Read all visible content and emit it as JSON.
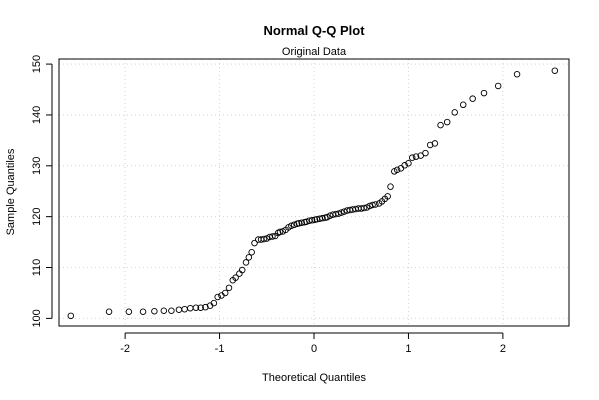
{
  "chart_data": {
    "type": "scatter",
    "title": "Normal Q-Q Plot",
    "subtitle": "Original Data",
    "xlabel": "Theoretical Quantiles",
    "ylabel": "Sample Quantiles",
    "xlim": [
      -2.7,
      2.7
    ],
    "ylim": [
      98.5,
      151
    ],
    "x_ticks": [
      "-2",
      "-1",
      "0",
      "1",
      "2"
    ],
    "y_ticks": [
      "100",
      "110",
      "120",
      "130",
      "140",
      "150"
    ],
    "grid": true,
    "marker": "open-circle",
    "series": [
      {
        "points": [
          [
            -2.575,
            100.5
          ],
          [
            -2.17,
            101.3
          ],
          [
            -1.96,
            101.3
          ],
          [
            -1.81,
            101.3
          ],
          [
            -1.69,
            101.4
          ],
          [
            -1.59,
            101.5
          ],
          [
            -1.51,
            101.5
          ],
          [
            -1.43,
            101.7
          ],
          [
            -1.37,
            101.8
          ],
          [
            -1.31,
            102.0
          ],
          [
            -1.25,
            102.1
          ],
          [
            -1.2,
            102.1
          ],
          [
            -1.15,
            102.2
          ],
          [
            -1.1,
            102.5
          ],
          [
            -1.06,
            103.0
          ],
          [
            -1.02,
            104.2
          ],
          [
            -0.98,
            104.5
          ],
          [
            -0.94,
            105.0
          ],
          [
            -0.9,
            106.0
          ],
          [
            -0.86,
            107.5
          ],
          [
            -0.83,
            108.0
          ],
          [
            -0.79,
            108.8
          ],
          [
            -0.76,
            109.5
          ],
          [
            -0.72,
            111.0
          ],
          [
            -0.69,
            112.0
          ],
          [
            -0.66,
            113.0
          ],
          [
            -0.63,
            114.8
          ],
          [
            -0.59,
            115.5
          ],
          [
            -0.56,
            115.5
          ],
          [
            -0.53,
            115.6
          ],
          [
            -0.5,
            115.7
          ],
          [
            -0.47,
            116.0
          ],
          [
            -0.44,
            116.1
          ],
          [
            -0.41,
            116.2
          ],
          [
            -0.38,
            116.8
          ],
          [
            -0.36,
            117.0
          ],
          [
            -0.33,
            117.1
          ],
          [
            -0.3,
            117.4
          ],
          [
            -0.27,
            117.9
          ],
          [
            -0.24,
            118.2
          ],
          [
            -0.21,
            118.4
          ],
          [
            -0.18,
            118.6
          ],
          [
            -0.16,
            118.7
          ],
          [
            -0.13,
            118.8
          ],
          [
            -0.1,
            118.9
          ],
          [
            -0.08,
            119.0
          ],
          [
            -0.05,
            119.2
          ],
          [
            -0.02,
            119.3
          ],
          [
            0.01,
            119.4
          ],
          [
            0.03,
            119.5
          ],
          [
            0.06,
            119.6
          ],
          [
            0.09,
            119.7
          ],
          [
            0.12,
            119.8
          ],
          [
            0.14,
            119.9
          ],
          [
            0.17,
            120.2
          ],
          [
            0.2,
            120.4
          ],
          [
            0.23,
            120.5
          ],
          [
            0.26,
            120.6
          ],
          [
            0.29,
            120.8
          ],
          [
            0.32,
            121.0
          ],
          [
            0.35,
            121.2
          ],
          [
            0.38,
            121.3
          ],
          [
            0.41,
            121.4
          ],
          [
            0.44,
            121.5
          ],
          [
            0.47,
            121.6
          ],
          [
            0.5,
            121.6
          ],
          [
            0.53,
            121.7
          ],
          [
            0.56,
            121.8
          ],
          [
            0.59,
            122.1
          ],
          [
            0.62,
            122.3
          ],
          [
            0.65,
            122.4
          ],
          [
            0.69,
            122.6
          ],
          [
            0.72,
            123.0
          ],
          [
            0.75,
            123.5
          ],
          [
            0.78,
            124.0
          ],
          [
            0.81,
            125.9
          ],
          [
            0.85,
            128.9
          ],
          [
            0.88,
            129.2
          ],
          [
            0.92,
            129.5
          ],
          [
            0.96,
            130.1
          ],
          [
            1.0,
            130.5
          ],
          [
            1.04,
            131.6
          ],
          [
            1.08,
            131.8
          ],
          [
            1.13,
            132.0
          ],
          [
            1.18,
            132.5
          ],
          [
            1.23,
            134.1
          ],
          [
            1.28,
            134.4
          ],
          [
            1.34,
            138.0
          ],
          [
            1.41,
            138.6
          ],
          [
            1.49,
            140.5
          ],
          [
            1.58,
            142.0
          ],
          [
            1.68,
            143.2
          ],
          [
            1.8,
            144.3
          ],
          [
            1.95,
            145.7
          ],
          [
            2.15,
            148.0
          ],
          [
            2.55,
            148.7
          ]
        ]
      }
    ]
  }
}
